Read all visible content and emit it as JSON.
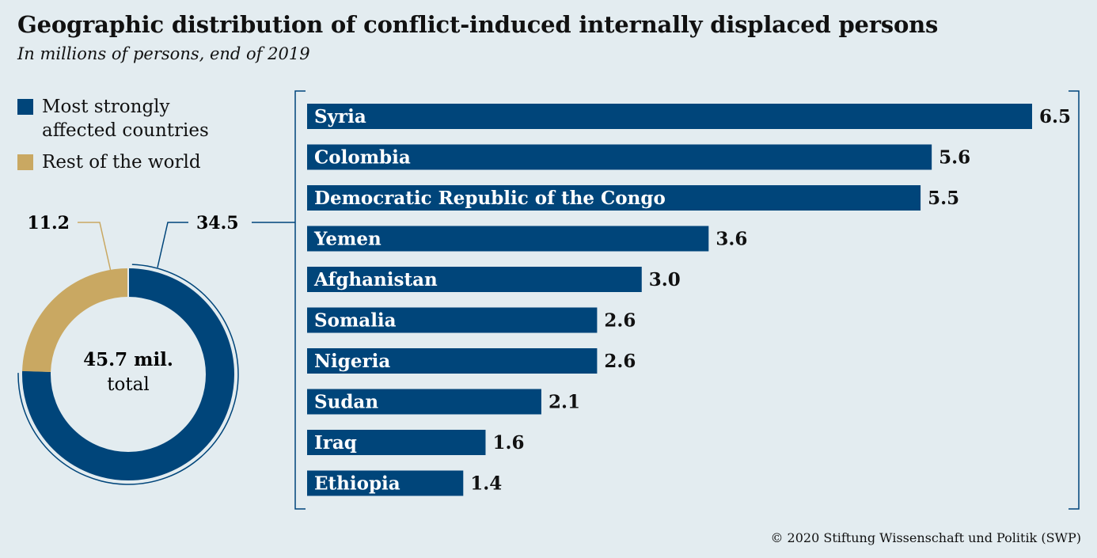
{
  "title": "Geographic distribution of conflict-induced internally displaced persons",
  "subtitle": "In millions of persons, end of 2019",
  "colors": {
    "primary": "#00457a",
    "secondary": "#c9a862",
    "background": "#e3ecf0"
  },
  "legend": [
    {
      "label": "Most strongly affected countries",
      "color": "#00457a"
    },
    {
      "label": "Rest of the world",
      "color": "#c9a862"
    }
  ],
  "donut": {
    "segments": [
      {
        "name": "Most strongly affected countries",
        "value": 34.5,
        "label": "34.5"
      },
      {
        "name": "Rest of the world",
        "value": 11.2,
        "label": "11.2"
      }
    ],
    "center_value": "45.7 mil.",
    "center_text": "total"
  },
  "chart_data": {
    "type": "bar",
    "orientation": "horizontal",
    "categories": [
      "Syria",
      "Colombia",
      "Democratic Republic of the Congo",
      "Yemen",
      "Afghanistan",
      "Somalia",
      "Nigeria",
      "Sudan",
      "Iraq",
      "Ethiopia"
    ],
    "values": [
      6.5,
      5.6,
      5.5,
      3.6,
      3.0,
      2.6,
      2.6,
      2.1,
      1.6,
      1.4
    ],
    "value_labels": [
      "6.5",
      "5.6",
      "5.5",
      "3.6",
      "3.0",
      "2.6",
      "2.6",
      "2.1",
      "1.6",
      "1.4"
    ],
    "grid": false
  },
  "copyright": "© 2020 Stiftung Wissenschaft und Politik (SWP)"
}
